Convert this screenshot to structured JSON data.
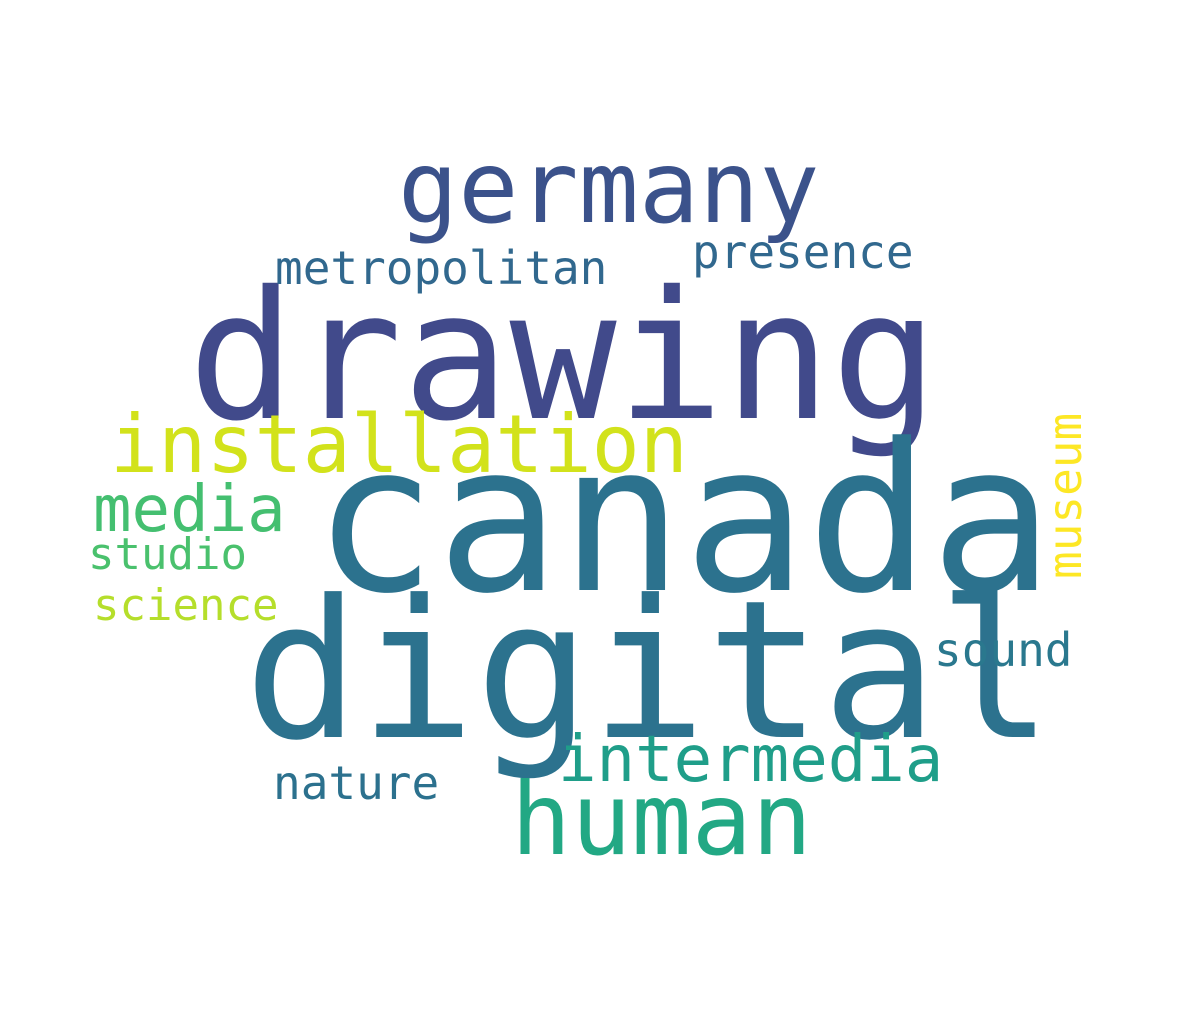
{
  "words": {
    "drawing": {
      "text": "drawing",
      "color": "#414a8b"
    },
    "canada": {
      "text": "canada",
      "color": "#2c728e"
    },
    "digital": {
      "text": "digital",
      "color": "#2c728e"
    },
    "germany": {
      "text": "germany",
      "color": "#3b528b"
    },
    "installation": {
      "text": "installation",
      "color": "#d2e21b"
    },
    "human": {
      "text": "human",
      "color": "#22a884"
    },
    "intermedia": {
      "text": "intermedia",
      "color": "#1f9e89"
    },
    "media": {
      "text": "media",
      "color": "#44bf70"
    },
    "metropolitan": {
      "text": "metropolitan",
      "color": "#31688e"
    },
    "presence": {
      "text": "presence",
      "color": "#31688e"
    },
    "studio": {
      "text": "studio",
      "color": "#4ac16d"
    },
    "science": {
      "text": "science",
      "color": "#b5de2b"
    },
    "sound": {
      "text": "sound",
      "color": "#2a788e"
    },
    "nature": {
      "text": "nature",
      "color": "#2c718e"
    },
    "museum": {
      "text": "museum",
      "color": "#fde725"
    }
  }
}
